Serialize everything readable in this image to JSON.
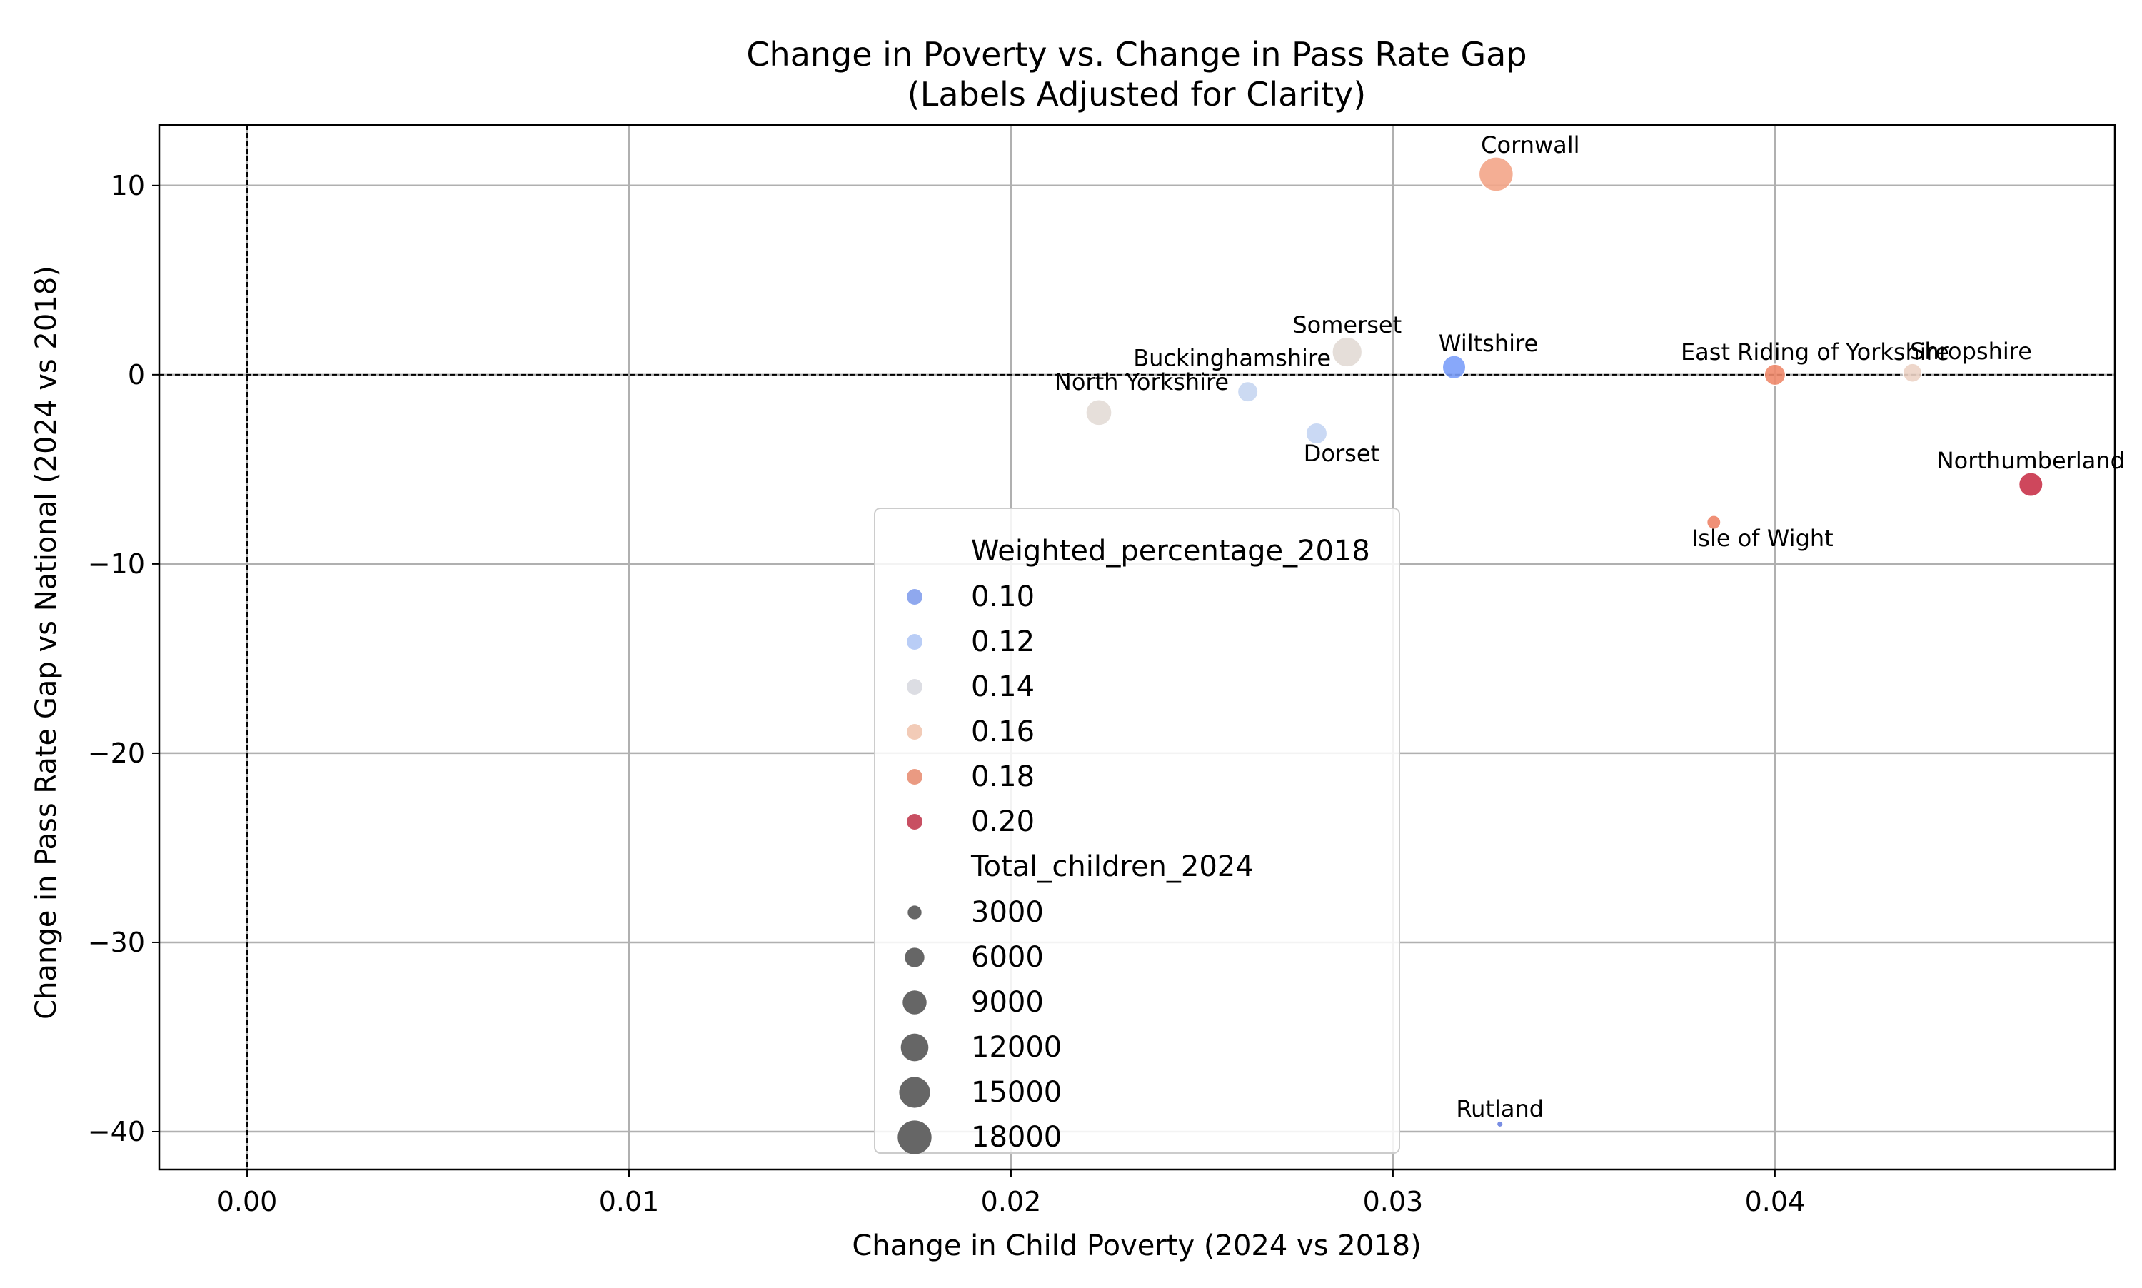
{
  "chart_data": {
    "type": "scatter",
    "title": "Change in Poverty vs. Change in Pass Rate Gap",
    "subtitle": "(Labels Adjusted for Clarity)",
    "xlabel": "Change in Child Poverty (2024 vs 2018)",
    "ylabel": "Change in Pass Rate Gap vs National (2024 vs 2018)",
    "xlim": [
      -0.0023,
      0.0489
    ],
    "ylim": [
      -42,
      13.2
    ],
    "xticks": [
      0.0,
      0.01,
      0.02,
      0.03,
      0.04
    ],
    "xtick_labels": [
      "0.00",
      "0.01",
      "0.02",
      "0.03",
      "0.04"
    ],
    "yticks": [
      10,
      0,
      -10,
      -20,
      -30,
      -40
    ],
    "ytick_labels": [
      "10",
      "0",
      "−10",
      "−20",
      "−30",
      "−40"
    ],
    "grid": true,
    "reference_lines": {
      "x": 0,
      "y": 0
    },
    "color_encoding": "Weighted_percentage_2018",
    "size_encoding": "Total_children_2024",
    "points": [
      {
        "label": "Cornwall",
        "x": 0.0327,
        "y": 10.6,
        "weighted_percentage_2018": 0.165,
        "total_children_2024": 18500,
        "color": "#f3a588"
      },
      {
        "label": "Somerset",
        "x": 0.0288,
        "y": 1.2,
        "weighted_percentage_2018": 0.143,
        "total_children_2024": 14000,
        "color": "#e2dad5"
      },
      {
        "label": "Wiltshire",
        "x": 0.0316,
        "y": 0.4,
        "weighted_percentage_2018": 0.102,
        "total_children_2024": 8500,
        "color": "#7b9ff9"
      },
      {
        "label": "Buckinghamshire",
        "x": 0.0262,
        "y": -0.9,
        "weighted_percentage_2018": 0.118,
        "total_children_2024": 6500,
        "color": "#c6d6f1"
      },
      {
        "label": "North Yorkshire",
        "x": 0.0223,
        "y": -2.0,
        "weighted_percentage_2018": 0.143,
        "total_children_2024": 10500,
        "color": "#e3dcd6"
      },
      {
        "label": "Dorset",
        "x": 0.028,
        "y": -3.1,
        "weighted_percentage_2018": 0.118,
        "total_children_2024": 7000,
        "color": "#c4d5f3"
      },
      {
        "label": "East Riding of Yorkshire",
        "x": 0.04,
        "y": 0.0,
        "weighted_percentage_2018": 0.182,
        "total_children_2024": 7000,
        "color": "#f08a6c"
      },
      {
        "label": "Shropshire",
        "x": 0.0436,
        "y": 0.1,
        "weighted_percentage_2018": 0.15,
        "total_children_2024": 5500,
        "color": "#ecd3c5"
      },
      {
        "label": "Northumberland",
        "x": 0.0467,
        "y": -5.8,
        "weighted_percentage_2018": 0.205,
        "total_children_2024": 9000,
        "color": "#c9334a"
      },
      {
        "label": "Isle of Wight",
        "x": 0.0384,
        "y": -7.8,
        "weighted_percentage_2018": 0.18,
        "total_children_2024": 3000,
        "color": "#ee8468"
      },
      {
        "label": "Rutland",
        "x": 0.0328,
        "y": -39.6,
        "weighted_percentage_2018": 0.085,
        "total_children_2024": 600,
        "color": "#6a82e0"
      }
    ],
    "legend": {
      "placement": "lower-center",
      "color_title": "Weighted_percentage_2018",
      "color_items": [
        {
          "label": "0.10",
          "color": "#8fa8ee"
        },
        {
          "label": "0.12",
          "color": "#b9cdf6"
        },
        {
          "label": "0.14",
          "color": "#dcdde3"
        },
        {
          "label": "0.16",
          "color": "#f2cbb7"
        },
        {
          "label": "0.18",
          "color": "#ea9a82"
        },
        {
          "label": "0.20",
          "color": "#c84f62"
        }
      ],
      "size_title": "Total_children_2024",
      "size_items": [
        {
          "label": "3000",
          "value": 3000
        },
        {
          "label": "6000",
          "value": 6000
        },
        {
          "label": "9000",
          "value": 9000
        },
        {
          "label": "12000",
          "value": 12000
        },
        {
          "label": "15000",
          "value": 15000
        },
        {
          "label": "18000",
          "value": 18000
        }
      ],
      "size_marker_color": "#666666"
    }
  }
}
